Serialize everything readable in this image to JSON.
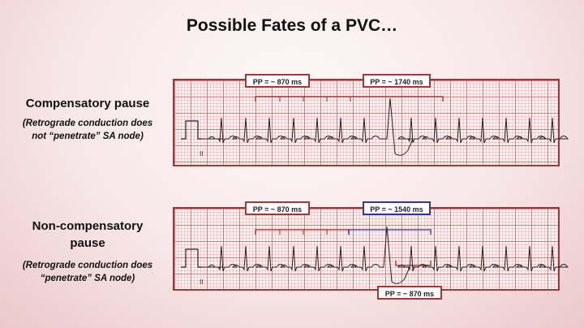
{
  "title": "Possible Fates of a PVC…",
  "colors": {
    "strip_border": "#9c3a3a",
    "bracket_red": "#9c2a2a",
    "bracket_blue": "#2d3a9a",
    "trace": "#222222"
  },
  "panels": [
    {
      "heading": "Compensatory pause",
      "note_line1": "(Retrograde conduction does",
      "note_line2": "not “penetrate” SA node)",
      "lead": "II",
      "intervals": [
        {
          "text": "PP = ~ 870 ms"
        },
        {
          "text": "PP = ~ 1740 ms"
        }
      ]
    },
    {
      "heading_line1": "Non-compensatory",
      "heading_line2": "pause",
      "note_line1": "(Retrograde conduction does",
      "note_line2": "“penetrate” SA node)",
      "lead": "II",
      "intervals": [
        {
          "text": "PP = ~ 870 ms"
        },
        {
          "text": "PP = ~ 1540 ms"
        },
        {
          "text": "PP = ~ 870 ms"
        }
      ]
    }
  ]
}
